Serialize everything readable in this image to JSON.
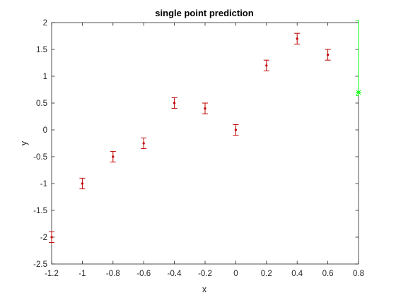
{
  "chart_data": {
    "type": "scatter",
    "title": "single point prediction",
    "xlabel": "x",
    "ylabel": "y",
    "xlim": [
      -1.2,
      0.8
    ],
    "ylim": [
      -2.5,
      2
    ],
    "xticks": [
      "-1.2",
      "-1",
      "-0.8",
      "-0.6",
      "-0.4",
      "-0.2",
      "0",
      "0.2",
      "0.4",
      "0.6",
      "0.8"
    ],
    "yticks": [
      "-2.5",
      "-2",
      "-1.5",
      "-1",
      "-0.5",
      "0",
      "0.5",
      "1",
      "1.5",
      "2"
    ],
    "grid": false,
    "legend": "none",
    "series": [
      {
        "marker": "dot",
        "color": "#c00000",
        "x": [
          -1.2,
          -1.0,
          -0.8,
          -0.6,
          -0.4,
          -0.2,
          0.0,
          0.2,
          0.4,
          0.6
        ],
        "y": [
          -2.0,
          -1.0,
          -0.5,
          -0.25,
          0.5,
          0.4,
          0.0,
          1.2,
          1.7,
          1.4
        ],
        "err": [
          0.1,
          0.1,
          0.1,
          0.1,
          0.1,
          0.1,
          0.1,
          0.1,
          0.1,
          0.1
        ]
      },
      {
        "marker": "star",
        "color": "#00ff00",
        "x": [
          0.8
        ],
        "y": [
          0.7
        ],
        "err_low": [
          0.06
        ],
        "err_high": [
          1.34
        ]
      }
    ]
  }
}
